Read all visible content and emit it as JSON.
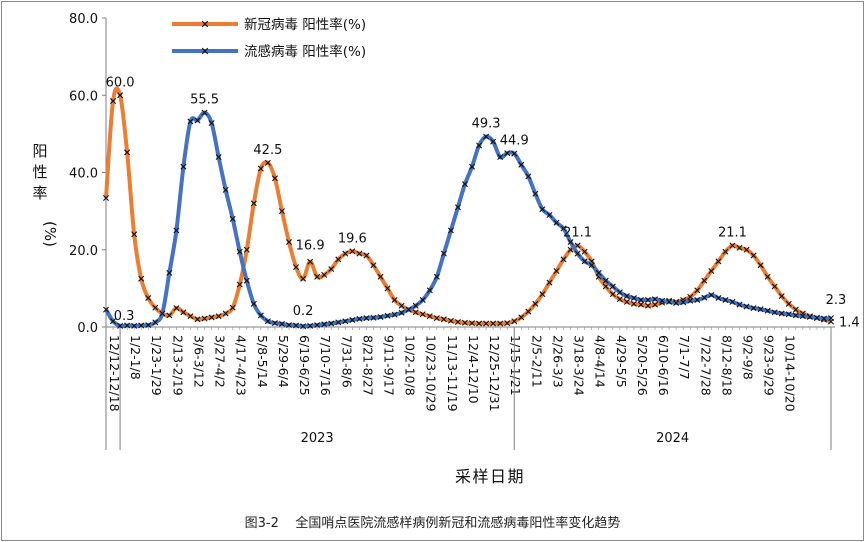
{
  "chart_data": {
    "type": "line",
    "caption": "图3-2    全国哨点医院流感样病例新冠和流感病毒阳性率变化趋势",
    "xlabel": "采样日期",
    "ylabel_chars": [
      "阳",
      "性",
      "率"
    ],
    "ylabel_unit": "(%)",
    "ylim": [
      0,
      80
    ],
    "yticks": [
      "0.0",
      "20.0",
      "40.0",
      "60.0",
      "80.0"
    ],
    "xticks": [
      "12/12-12/18",
      "1/2-1/8",
      "1/23-1/29",
      "2/13-2/19",
      "3/6-3/12",
      "3/27-4/2",
      "4/17-4/23",
      "5/8-5/14",
      "5/29-6/4",
      "6/19-6/25",
      "7/10-7/16",
      "7/31-8/6",
      "8/21-8/27",
      "9/11-9/17",
      "10/2-10/8",
      "10/23-10/29",
      "11/13-11/19",
      "12/4-12/10",
      "12/25-12/31",
      "1/15-1/21",
      "2/5-2/11",
      "2/26-3/3",
      "3/18-3/24",
      "4/8-4/14",
      "4/29-5/5",
      "5/20-5/26",
      "6/10-6/16",
      "7/1-7/7",
      "7/22-7/28",
      "8/12-8/18",
      "9/2-9/8",
      "9/23-9/29",
      "10/14-10/20"
    ],
    "years": [
      "2023",
      "2024"
    ],
    "series": [
      {
        "name": "新冠病毒 阳性率(%)",
        "color": "#ED7D31",
        "values": [
          33.4,
          58.5,
          60.0,
          45.2,
          24.0,
          12.5,
          7.5,
          5.0,
          3.5,
          3.0,
          4.9,
          3.8,
          2.8,
          2.0,
          2.2,
          2.5,
          2.8,
          3.5,
          5.0,
          11.0,
          20.0,
          32.0,
          41.0,
          42.5,
          38.5,
          30.0,
          22.0,
          15.5,
          12.5,
          16.9,
          13.0,
          13.5,
          15.0,
          17.5,
          19.0,
          19.6,
          19.0,
          18.5,
          16.0,
          13.0,
          10.0,
          7.0,
          5.5,
          4.5,
          3.8,
          3.3,
          2.8,
          2.3,
          2.0,
          1.6,
          1.3,
          1.1,
          1.0,
          0.9,
          0.9,
          0.9,
          0.9,
          1.0,
          1.5,
          2.5,
          4.0,
          6.0,
          8.5,
          11.5,
          14.5,
          17.5,
          20.0,
          21.1,
          19.5,
          17.0,
          13.0,
          10.5,
          8.5,
          7.2,
          6.5,
          6.0,
          5.8,
          5.5,
          5.8,
          6.3,
          6.8,
          6.5,
          7.0,
          7.8,
          9.5,
          12.0,
          14.5,
          17.0,
          19.5,
          21.1,
          20.5,
          20.0,
          18.5,
          16.0,
          13.0,
          10.5,
          8.0,
          6.0,
          4.5,
          3.5,
          2.8,
          2.3,
          1.9,
          1.4
        ],
        "labels": [
          [
            2,
            "60.0"
          ],
          [
            23,
            "42.5"
          ],
          [
            29,
            "16.9"
          ],
          [
            35,
            "19.6"
          ],
          [
            67,
            "21.1"
          ],
          [
            89,
            "21.1"
          ],
          [
            103,
            "1.4"
          ]
        ]
      },
      {
        "name": "流感病毒 阳性率(%)",
        "color": "#4472C4",
        "values": [
          4.5,
          1.5,
          0.3,
          0.4,
          0.3,
          0.4,
          0.5,
          1.2,
          3.5,
          14.0,
          25.0,
          41.5,
          53.2,
          53.5,
          55.5,
          52.8,
          44.0,
          35.5,
          28.0,
          19.5,
          12.0,
          6.0,
          3.0,
          1.5,
          1.0,
          0.8,
          0.5,
          0.4,
          0.2,
          0.3,
          0.5,
          0.7,
          0.9,
          1.2,
          1.5,
          1.8,
          2.1,
          2.3,
          2.4,
          2.6,
          2.9,
          3.2,
          3.7,
          4.5,
          5.5,
          7.0,
          9.5,
          13.0,
          19.0,
          25.0,
          31.0,
          37.0,
          41.5,
          47.0,
          49.3,
          48.0,
          44.0,
          45.0,
          44.9,
          42.0,
          39.0,
          34.5,
          30.5,
          29.0,
          27.0,
          25.5,
          22.0,
          19.0,
          17.0,
          16.0,
          14.0,
          12.0,
          10.5,
          9.0,
          8.0,
          7.5,
          7.0,
          7.0,
          7.2,
          6.8,
          6.5,
          6.2,
          6.4,
          6.8,
          7.0,
          7.6,
          8.3,
          7.5,
          7.0,
          6.5,
          5.8,
          5.3,
          4.9,
          4.6,
          4.2,
          3.8,
          3.5,
          3.3,
          3.0,
          2.8,
          2.6,
          2.4,
          2.2,
          2.3
        ],
        "labels": [
          [
            2,
            "0.3"
          ],
          [
            14,
            "55.5"
          ],
          [
            28,
            "0.2"
          ],
          [
            54,
            "49.3"
          ],
          [
            58,
            "44.9"
          ],
          [
            103,
            "2.3"
          ]
        ]
      }
    ]
  }
}
